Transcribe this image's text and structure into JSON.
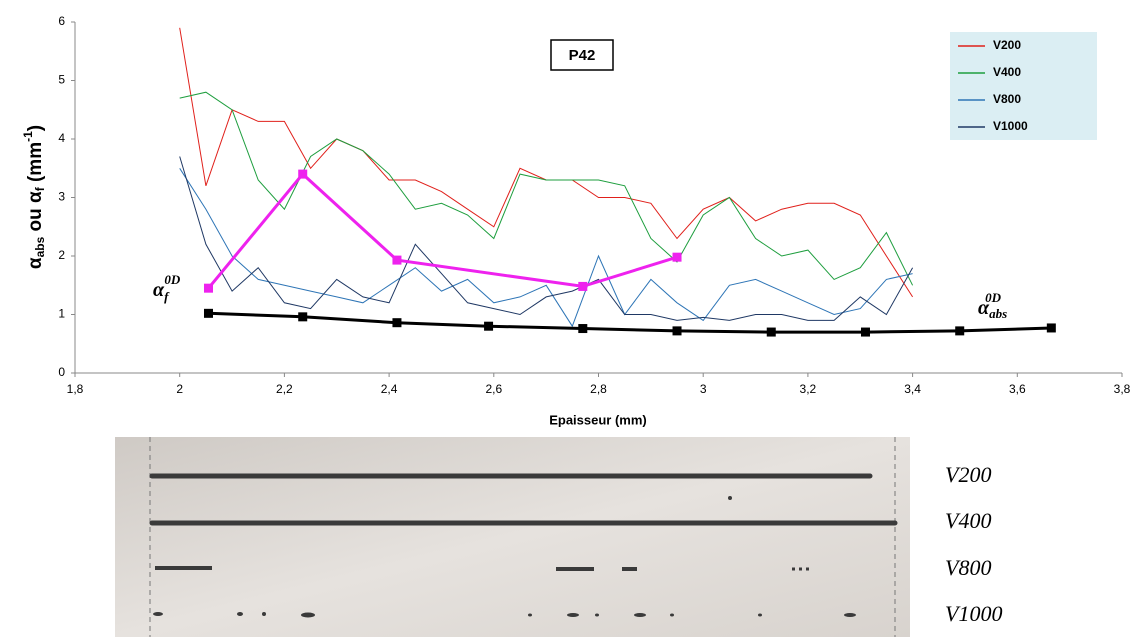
{
  "chart_data": {
    "type": "line",
    "title": "P42",
    "x_label": "Epaisseur (mm)",
    "y_label": [
      "α",
      "abs",
      " ou α",
      "f",
      "  (mm",
      "-1",
      ")"
    ],
    "xlim": [
      1.8,
      3.8
    ],
    "xticks": [
      {
        "value": 1.8,
        "label": "1,8"
      },
      2,
      {
        "value": 2.2,
        "label": "2,2"
      },
      {
        "value": 2.4,
        "label": "2,4"
      },
      {
        "value": 2.6,
        "label": "2,6"
      },
      {
        "value": 2.8,
        "label": "2,8"
      },
      3,
      {
        "value": 3.2,
        "label": "3,2"
      },
      {
        "value": 3.4,
        "label": "3,4"
      },
      {
        "value": 3.6,
        "label": "3,6"
      },
      {
        "value": 3.8,
        "label": "3,8"
      }
    ],
    "ylim": [
      0,
      6
    ],
    "yticks": [
      0,
      1,
      2,
      3,
      4,
      5,
      6
    ],
    "x": [
      2.0,
      2.05,
      2.1,
      2.15,
      2.2,
      2.25,
      2.3,
      2.35,
      2.4,
      2.45,
      2.5,
      2.55,
      2.6,
      2.65,
      2.7,
      2.75,
      2.8,
      2.85,
      2.9,
      2.95,
      3.0,
      3.05,
      3.1,
      3.15,
      3.2,
      3.25,
      3.3,
      3.35,
      3.4
    ],
    "series": [
      {
        "name": "V200",
        "color": "#e0201b",
        "values": [
          5.9,
          3.2,
          4.5,
          4.3,
          4.3,
          3.5,
          4.0,
          3.8,
          3.3,
          3.3,
          3.1,
          2.8,
          2.5,
          3.5,
          3.3,
          3.3,
          3.0,
          3.0,
          2.9,
          2.3,
          2.8,
          3.0,
          2.6,
          2.8,
          2.9,
          2.9,
          2.7,
          2.0,
          1.3
        ]
      },
      {
        "name": "V400",
        "color": "#1e9e3e",
        "values": [
          4.7,
          4.8,
          4.5,
          3.3,
          2.8,
          3.7,
          4.0,
          3.8,
          3.4,
          2.8,
          2.9,
          2.7,
          2.3,
          3.4,
          3.3,
          3.3,
          3.3,
          3.2,
          2.3,
          1.9,
          2.7,
          3.0,
          2.3,
          2.0,
          2.1,
          1.6,
          1.8,
          2.4,
          1.5
        ]
      },
      {
        "name": "V800",
        "color": "#2e75b6",
        "values": [
          3.5,
          2.8,
          2.0,
          1.6,
          1.5,
          1.4,
          1.3,
          1.2,
          1.5,
          1.8,
          1.4,
          1.6,
          1.2,
          1.3,
          1.5,
          0.8,
          2.0,
          1.0,
          1.6,
          1.2,
          0.9,
          1.5,
          1.6,
          1.4,
          1.2,
          1.0,
          1.1,
          1.6,
          1.7
        ]
      },
      {
        "name": "V1000",
        "color": "#1f3864",
        "values": [
          3.7,
          2.2,
          1.4,
          1.8,
          1.2,
          1.1,
          1.6,
          1.3,
          1.2,
          2.2,
          1.7,
          1.2,
          1.1,
          1.0,
          1.3,
          1.4,
          1.6,
          1.0,
          1.0,
          0.9,
          0.95,
          0.9,
          1.0,
          1.0,
          0.9,
          0.9,
          1.3,
          1.0,
          1.8
        ]
      },
      {
        "label": [
          "α",
          "f",
          "0D"
        ],
        "color": "#ee22ee",
        "x": [
          2.055,
          2.235,
          2.415,
          2.77,
          2.95
        ],
        "values": [
          1.45,
          3.4,
          1.93,
          1.48,
          1.98
        ]
      },
      {
        "label": [
          "α",
          "abs",
          "0D"
        ],
        "color": "#000000",
        "x": [
          2.055,
          2.235,
          2.415,
          2.59,
          2.77,
          2.95,
          3.13,
          3.31,
          3.49,
          3.665
        ],
        "values": [
          1.02,
          0.96,
          0.86,
          0.8,
          0.76,
          0.72,
          0.7,
          0.7,
          0.72,
          0.77
        ]
      }
    ],
    "image_labels": [
      "V200",
      "V400",
      "V800",
      "V1000"
    ]
  }
}
